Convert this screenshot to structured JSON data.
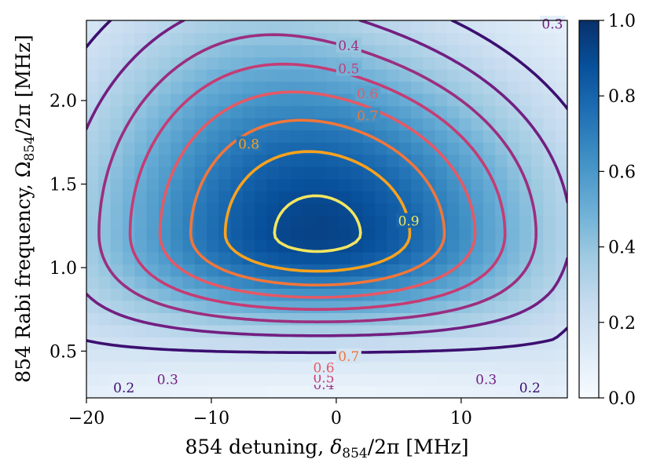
{
  "chart_data": {
    "type": "heatmap",
    "subtype": "heatmap-with-contours",
    "xlabel_text": "854 detuning,",
    "xlabel_var": "δ",
    "xlabel_sub": "854",
    "xlabel_rest": "/2π [MHz]",
    "ylabel_text": "854 Rabi frequency,",
    "ylabel_var": "Ω",
    "ylabel_sub": "854",
    "ylabel_rest": "/2π  [MHz]",
    "xlim": [
      -20,
      18.5
    ],
    "ylim": [
      0.22,
      2.48
    ],
    "x_ticks": [
      -20,
      -10,
      0,
      10
    ],
    "x_tick_labels": [
      "−20",
      "−10",
      "0",
      "10"
    ],
    "y_ticks": [
      0.5,
      1.0,
      1.5,
      2.0
    ],
    "y_tick_labels": [
      "0.5",
      "1.0",
      "1.5",
      "2.0"
    ],
    "colormap": "Blues",
    "colorbar": {
      "range": [
        0.0,
        1.0
      ],
      "ticks": [
        0.0,
        0.2,
        0.4,
        0.6,
        0.8,
        1.0
      ],
      "tick_labels": [
        "0.0",
        "0.2",
        "0.4",
        "0.6",
        "0.8",
        "1.0"
      ]
    },
    "peak": {
      "x": -1.5,
      "y": 1.2,
      "value": 0.93
    },
    "contour_levels": [
      0.2,
      0.3,
      0.4,
      0.5,
      0.6,
      0.7,
      0.8,
      0.9
    ],
    "contour_colors": [
      "#3b0f70",
      "#721f81",
      "#9c2e7f",
      "#c53c74",
      "#e55964",
      "#f1763a",
      "#f9a21d",
      "#f2e661"
    ],
    "contour_labels": [
      {
        "text": "0.2",
        "x": -17,
        "y": 0.28
      },
      {
        "text": "0.3",
        "x": -13.5,
        "y": 0.33
      },
      {
        "text": "0.4",
        "x": -1,
        "y": 0.3
      },
      {
        "text": "0.5",
        "x": -1,
        "y": 0.34
      },
      {
        "text": "0.6",
        "x": -1,
        "y": 0.4
      },
      {
        "text": "0.7",
        "x": 1,
        "y": 0.47
      },
      {
        "text": "0.3",
        "x": 12,
        "y": 0.33
      },
      {
        "text": "0.2",
        "x": 15.5,
        "y": 0.28
      },
      {
        "text": "0.4",
        "x": 1,
        "y": 2.33
      },
      {
        "text": "0.5",
        "x": 1,
        "y": 2.19
      },
      {
        "text": "0.6",
        "x": 2.5,
        "y": 2.04
      },
      {
        "text": "0.7",
        "x": 2.5,
        "y": 1.91
      },
      {
        "text": "0.8",
        "x": -7,
        "y": 1.74
      },
      {
        "text": "0.9",
        "x": 5.8,
        "y": 1.28
      },
      {
        "text": "0.3",
        "x": 17.3,
        "y": 2.46
      }
    ]
  }
}
